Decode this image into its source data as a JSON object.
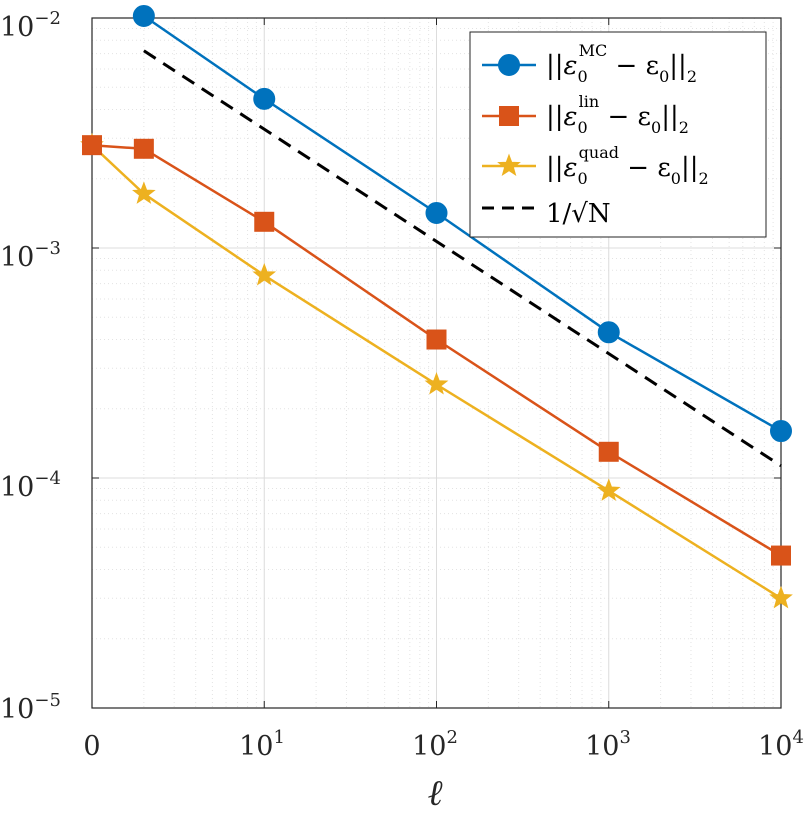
{
  "chart_data": {
    "type": "line",
    "title": "",
    "xlabel": "ℓ",
    "ylabel": "",
    "xscale": "log (0 at left edge)",
    "yscale": "log",
    "xlim": [
      1,
      10000
    ],
    "ylim": [
      1e-05,
      0.01
    ],
    "grid": true,
    "minor_grid": true,
    "legend_position": "top-right",
    "x_tick_labels": [
      {
        "base": "0",
        "exp": ""
      },
      {
        "base": "10",
        "exp": "1"
      },
      {
        "base": "10",
        "exp": "2"
      },
      {
        "base": "10",
        "exp": "3"
      },
      {
        "base": "10",
        "exp": "4"
      }
    ],
    "y_tick_labels": [
      {
        "base": "10",
        "exp": "−2"
      },
      {
        "base": "10",
        "exp": "−3"
      },
      {
        "base": "10",
        "exp": "−4"
      },
      {
        "base": "10",
        "exp": "−5"
      }
    ],
    "x": [
      0,
      2,
      10,
      100,
      1000,
      10000
    ],
    "series": [
      {
        "name": "MC",
        "legend_label": "||ε0^MC − ε0||2",
        "color": "#0072BD",
        "marker": "circle",
        "linestyle": "solid",
        "x": [
          2,
          10,
          100,
          1000,
          10000
        ],
        "values": [
          0.0102,
          0.00445,
          0.00142,
          0.00043,
          0.00016
        ]
      },
      {
        "name": "lin",
        "legend_label": "||ε0^lin − ε0||2",
        "color": "#D95319",
        "marker": "square",
        "linestyle": "solid",
        "x": [
          0,
          2,
          10,
          100,
          1000,
          10000
        ],
        "values": [
          0.0028,
          0.0027,
          0.0013,
          0.0004,
          0.00013,
          4.6e-05
        ]
      },
      {
        "name": "quad",
        "legend_label": "||ε0^quad − ε0||2",
        "color": "#EDB120",
        "marker": "star",
        "linestyle": "solid",
        "x": [
          0,
          2,
          10,
          100,
          1000,
          10000
        ],
        "values": [
          0.0028,
          0.00172,
          0.00076,
          0.000255,
          8.8e-05,
          3e-05
        ]
      },
      {
        "name": "ref",
        "legend_label": "1/√N",
        "color": "#000000",
        "marker": "none",
        "linestyle": "dashed",
        "x": [
          2,
          10000
        ],
        "values": [
          0.0072,
          0.000113
        ]
      }
    ],
    "legend": [
      {
        "pre": "||",
        "eps": "ε",
        "sub": "0",
        "sup": "MC",
        "mid": " − ε",
        "sub2": "0",
        "post": "||",
        "tail": "2"
      },
      {
        "pre": "||",
        "eps": "ε",
        "sub": "0",
        "sup": "lin",
        "mid": " − ε",
        "sub2": "0",
        "post": "||",
        "tail": "2"
      },
      {
        "pre": "||",
        "eps": "ε",
        "sub": "0",
        "sup": "quad",
        "mid": " − ε",
        "sub2": "0",
        "post": "||",
        "tail": "2"
      },
      {
        "text": "1/√N"
      }
    ]
  }
}
